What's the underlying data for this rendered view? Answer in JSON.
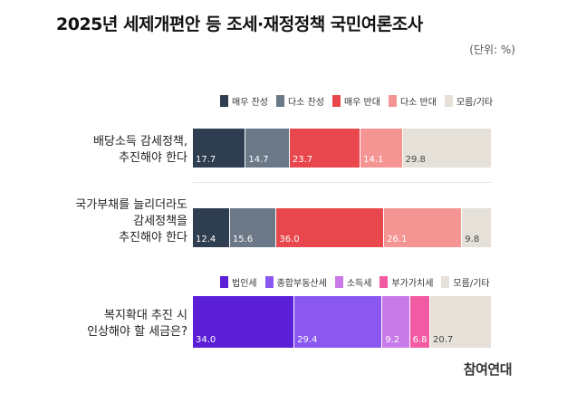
{
  "chart_data": [
    {
      "type": "bar",
      "orientation": "horizontal-stacked",
      "title": "2025년 세제개편안 등 조세·재정정책 국민여론조사",
      "unit": "(단위: %)",
      "categories": [
        "배당소득 감세정책, 추진해야 한다",
        "국가부채를 늘리더라도 감세정책을 추진해야 한다"
      ],
      "series": [
        {
          "name": "매우 찬성",
          "color": "#2e3d4f",
          "values": [
            17.7,
            12.4
          ]
        },
        {
          "name": "다소 찬성",
          "color": "#6b7888",
          "values": [
            14.7,
            15.6
          ]
        },
        {
          "name": "매우 반대",
          "color": "#e8484d",
          "values": [
            23.7,
            36.0
          ]
        },
        {
          "name": "다소 반대",
          "color": "#f59593",
          "values": [
            14.1,
            26.1
          ]
        },
        {
          "name": "모름/기타",
          "color": "#e6e1d8",
          "values": [
            29.8,
            9.8
          ]
        }
      ],
      "value_labels": [
        [
          "17.7",
          "14.7",
          "23.7",
          "14.1",
          "29.8"
        ],
        [
          "12.4",
          "15.6",
          "36.0",
          "26.1",
          "9.8"
        ]
      ],
      "xlim": [
        0,
        100
      ],
      "legend": "top"
    },
    {
      "type": "bar",
      "orientation": "horizontal-stacked",
      "categories": [
        "복지확대 추진 시 인상해야 할 세금은?"
      ],
      "series": [
        {
          "name": "법인세",
          "color": "#5a1fd6",
          "values": [
            34.0
          ]
        },
        {
          "name": "종합부동산세",
          "color": "#8a57f0",
          "values": [
            29.4
          ]
        },
        {
          "name": "소득세",
          "color": "#c87ae8",
          "values": [
            9.2
          ]
        },
        {
          "name": "부가가치세",
          "color": "#f25aa3",
          "values": [
            6.8
          ]
        },
        {
          "name": "모름/기타",
          "color": "#e6e1d8",
          "values": [
            20.7
          ]
        }
      ],
      "value_labels": [
        [
          "34.0",
          "29.4",
          "9.2",
          "6.8",
          "20.7"
        ]
      ],
      "xlim": [
        0,
        100
      ],
      "legend": "top"
    }
  ],
  "labels": {
    "row1": [
      "배당소득 감세정책,",
      "추진해야 한다"
    ],
    "row2": [
      "국가부채를 늘리더라도",
      "감세정책을",
      "추진해야 한다"
    ],
    "row3": [
      "복지확대 추진 시",
      "인상해야 할 세금은?"
    ]
  },
  "brand": "참여연대"
}
